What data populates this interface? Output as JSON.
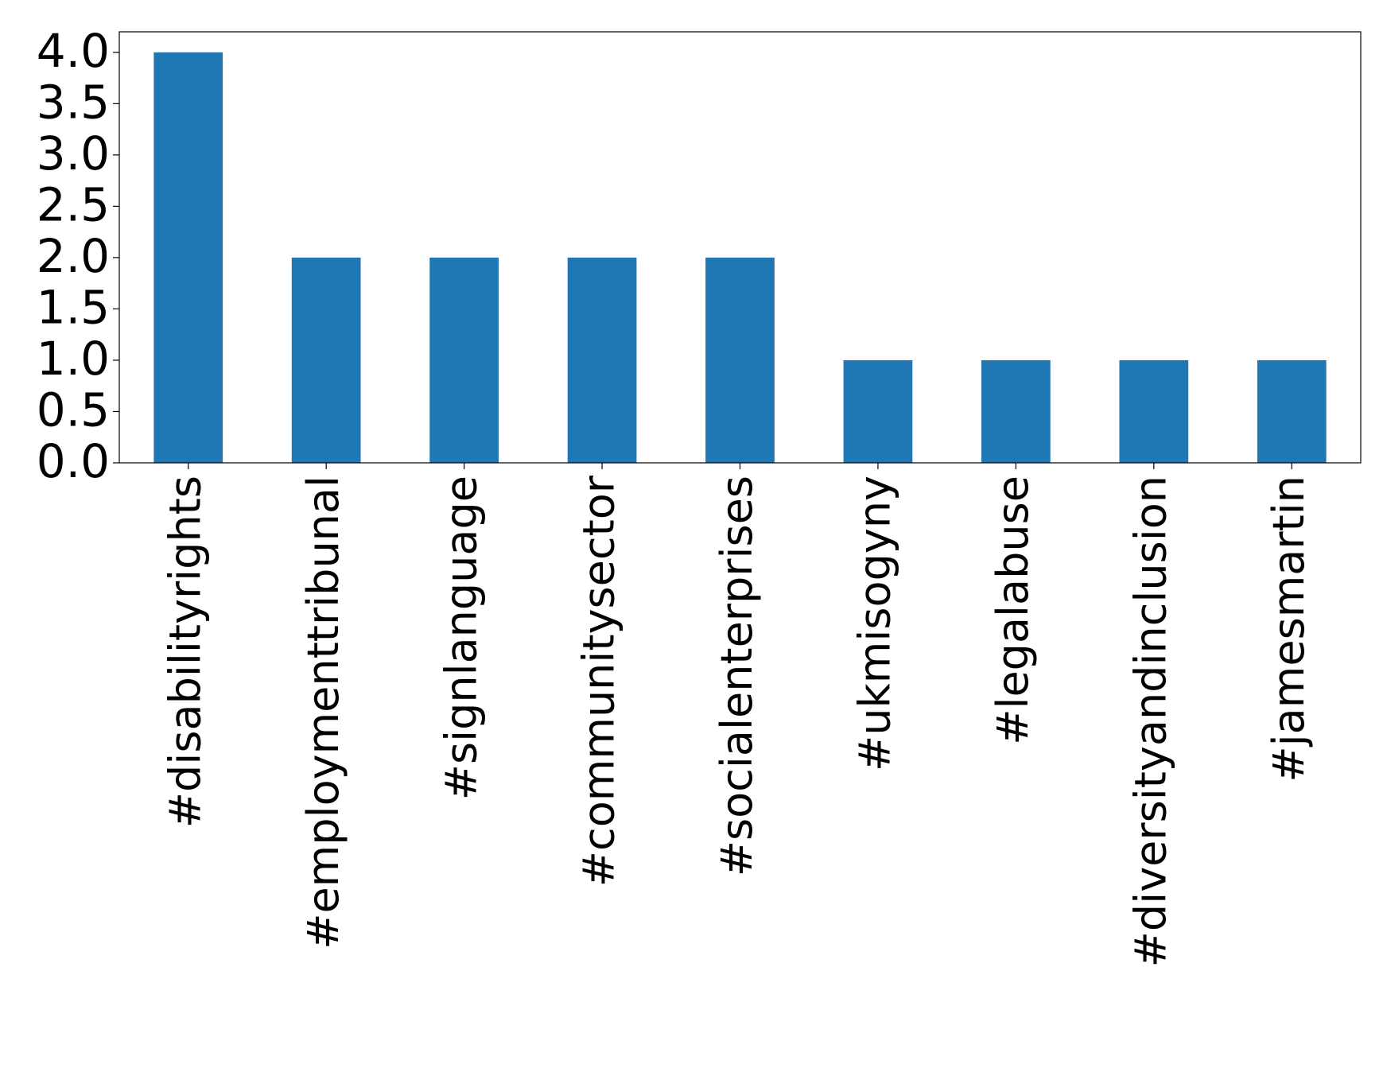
{
  "chart_data": {
    "type": "bar",
    "categories": [
      "#disabilityrights",
      "#employmenttribunal",
      "#signlanguage",
      "#communitysector",
      "#socialenterprises",
      "#ukmisogyny",
      "#legalabuse",
      "#diversityandinclusion",
      "#jamesmartin"
    ],
    "values": [
      4,
      2,
      2,
      2,
      2,
      1,
      1,
      1,
      1
    ],
    "color": "#1f77b4",
    "ylim": [
      0,
      4.2
    ],
    "yticks": [
      {
        "value": 0,
        "label": "0.0"
      },
      0.5,
      {
        "value": 1,
        "label": "1.0"
      },
      1.5,
      {
        "value": 2,
        "label": "2.0"
      },
      2.5,
      {
        "value": 3,
        "label": "3.0"
      },
      3.5,
      {
        "value": 4,
        "label": "4.0"
      }
    ],
    "grid": false
  }
}
